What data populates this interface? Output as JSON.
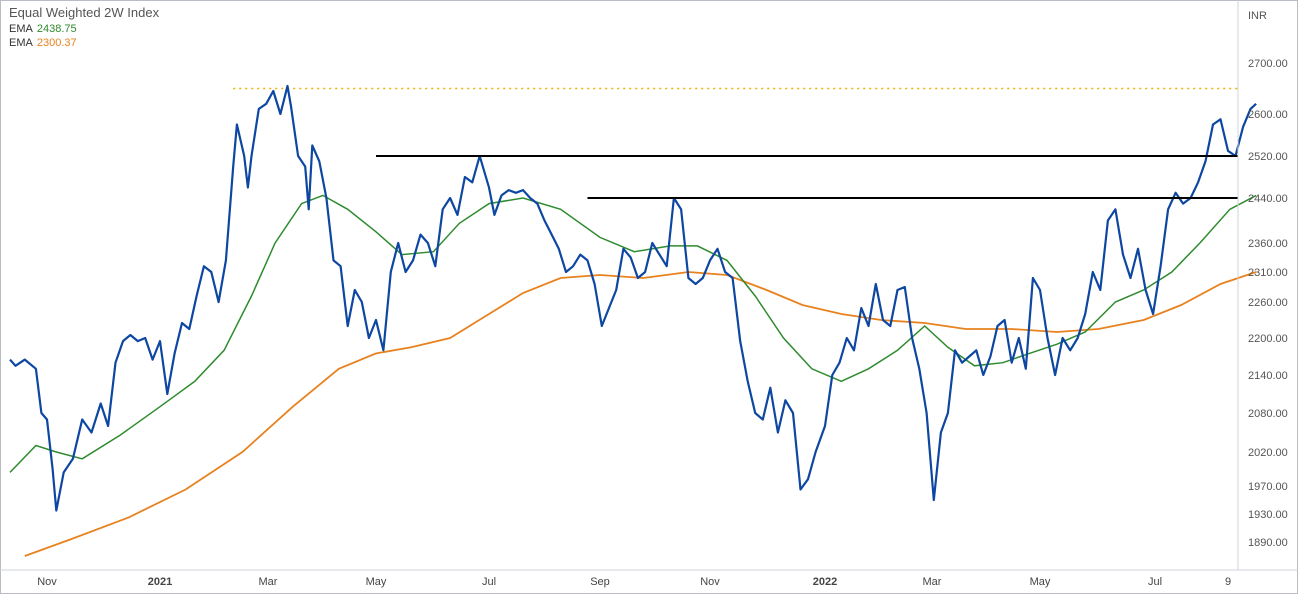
{
  "chart_data": {
    "type": "line",
    "title": "Equal Weighted 2W Index",
    "y_unit": "INR",
    "y_tick_labels": [
      "2700.00",
      "2600.00",
      "2520.00",
      "2440.00",
      "2360.00",
      "2310.00",
      "2260.00",
      "2200.00",
      "2140.00",
      "2080.00",
      "2020.00",
      "1970.00",
      "1930.00",
      "1890.00"
    ],
    "y_tick_values": [
      2700,
      2600,
      2520,
      2440,
      2360,
      2310,
      2260,
      2200,
      2140,
      2080,
      2020,
      1970,
      1930,
      1890
    ],
    "x_tick_labels": [
      "Nov",
      "2021",
      "Mar",
      "May",
      "Jul",
      "Sep",
      "Nov",
      "2022",
      "Mar",
      "May",
      "Jul",
      "9"
    ],
    "x_tick_dates": [
      "2020-11-01",
      "2021-01-01",
      "2021-03-01",
      "2021-05-01",
      "2021-07-01",
      "2021-09-01",
      "2021-11-01",
      "2022-01-01",
      "2022-03-01",
      "2022-05-01",
      "2022-07-01",
      "2022-08-09"
    ],
    "x_bold_labels": [
      "2021",
      "2022"
    ],
    "legend": [
      {
        "label": "EMA",
        "value": "2438.75",
        "color": "#2e8b2e"
      },
      {
        "label": "EMA",
        "value": "2300.37",
        "color": "#e8821e"
      }
    ],
    "grid": false,
    "colors": {
      "price": "#0d47a1",
      "ema_fast": "#2e8b2e",
      "ema_slow": "#e8821e",
      "resistance": "#000000",
      "peak_line": "#f0b000"
    },
    "series": [
      {
        "name": "Equal Weighted 2W Index",
        "points": [
          [
            "2020-10-12",
            2165
          ],
          [
            "2020-10-15",
            2155
          ],
          [
            "2020-10-20",
            2165
          ],
          [
            "2020-10-26",
            2150
          ],
          [
            "2020-10-29",
            2080
          ],
          [
            "2020-11-01",
            2070
          ],
          [
            "2020-11-04",
            1995
          ],
          [
            "2020-11-06",
            1935
          ],
          [
            "2020-11-10",
            1990
          ],
          [
            "2020-11-15",
            2010
          ],
          [
            "2020-11-20",
            2070
          ],
          [
            "2020-11-25",
            2050
          ],
          [
            "2020-11-30",
            2095
          ],
          [
            "2020-12-04",
            2060
          ],
          [
            "2020-12-08",
            2160
          ],
          [
            "2020-12-12",
            2195
          ],
          [
            "2020-12-16",
            2205
          ],
          [
            "2020-12-20",
            2195
          ],
          [
            "2020-12-24",
            2200
          ],
          [
            "2020-12-28",
            2165
          ],
          [
            "2021-01-01",
            2195
          ],
          [
            "2021-01-05",
            2110
          ],
          [
            "2021-01-09",
            2175
          ],
          [
            "2021-01-13",
            2225
          ],
          [
            "2021-01-17",
            2215
          ],
          [
            "2021-01-21",
            2270
          ],
          [
            "2021-01-25",
            2320
          ],
          [
            "2021-01-29",
            2310
          ],
          [
            "2021-02-02",
            2260
          ],
          [
            "2021-02-06",
            2330
          ],
          [
            "2021-02-10",
            2500
          ],
          [
            "2021-02-12",
            2580
          ],
          [
            "2021-02-16",
            2520
          ],
          [
            "2021-02-18",
            2460
          ],
          [
            "2021-02-20",
            2520
          ],
          [
            "2021-02-24",
            2610
          ],
          [
            "2021-02-28",
            2620
          ],
          [
            "2021-03-04",
            2645
          ],
          [
            "2021-03-08",
            2600
          ],
          [
            "2021-03-12",
            2655
          ],
          [
            "2021-03-14",
            2615
          ],
          [
            "2021-03-18",
            2520
          ],
          [
            "2021-03-22",
            2500
          ],
          [
            "2021-03-24",
            2420
          ],
          [
            "2021-03-26",
            2540
          ],
          [
            "2021-03-30",
            2510
          ],
          [
            "2021-04-03",
            2440
          ],
          [
            "2021-04-07",
            2330
          ],
          [
            "2021-04-11",
            2320
          ],
          [
            "2021-04-15",
            2220
          ],
          [
            "2021-04-19",
            2280
          ],
          [
            "2021-04-23",
            2260
          ],
          [
            "2021-04-27",
            2200
          ],
          [
            "2021-05-01",
            2230
          ],
          [
            "2021-05-05",
            2180
          ],
          [
            "2021-05-09",
            2310
          ],
          [
            "2021-05-13",
            2360
          ],
          [
            "2021-05-17",
            2310
          ],
          [
            "2021-05-21",
            2330
          ],
          [
            "2021-05-25",
            2375
          ],
          [
            "2021-05-29",
            2360
          ],
          [
            "2021-06-02",
            2320
          ],
          [
            "2021-06-06",
            2420
          ],
          [
            "2021-06-10",
            2440
          ],
          [
            "2021-06-14",
            2410
          ],
          [
            "2021-06-18",
            2480
          ],
          [
            "2021-06-22",
            2470
          ],
          [
            "2021-06-26",
            2520
          ],
          [
            "2021-07-01",
            2460
          ],
          [
            "2021-07-04",
            2410
          ],
          [
            "2021-07-08",
            2445
          ],
          [
            "2021-07-12",
            2455
          ],
          [
            "2021-07-16",
            2450
          ],
          [
            "2021-07-20",
            2455
          ],
          [
            "2021-07-24",
            2440
          ],
          [
            "2021-07-28",
            2430
          ],
          [
            "2021-08-01",
            2400
          ],
          [
            "2021-08-05",
            2375
          ],
          [
            "2021-08-09",
            2350
          ],
          [
            "2021-08-13",
            2310
          ],
          [
            "2021-08-17",
            2320
          ],
          [
            "2021-08-21",
            2340
          ],
          [
            "2021-08-25",
            2330
          ],
          [
            "2021-08-29",
            2290
          ],
          [
            "2021-09-02",
            2220
          ],
          [
            "2021-09-06",
            2250
          ],
          [
            "2021-09-10",
            2280
          ],
          [
            "2021-09-14",
            2350
          ],
          [
            "2021-09-18",
            2335
          ],
          [
            "2021-09-22",
            2300
          ],
          [
            "2021-09-26",
            2310
          ],
          [
            "2021-09-30",
            2360
          ],
          [
            "2021-10-04",
            2340
          ],
          [
            "2021-10-08",
            2320
          ],
          [
            "2021-10-12",
            2440
          ],
          [
            "2021-10-16",
            2420
          ],
          [
            "2021-10-20",
            2300
          ],
          [
            "2021-10-24",
            2290
          ],
          [
            "2021-10-28",
            2300
          ],
          [
            "2021-11-01",
            2330
          ],
          [
            "2021-11-05",
            2350
          ],
          [
            "2021-11-09",
            2310
          ],
          [
            "2021-11-13",
            2300
          ],
          [
            "2021-11-17",
            2195
          ],
          [
            "2021-11-21",
            2130
          ],
          [
            "2021-11-25",
            2080
          ],
          [
            "2021-11-29",
            2070
          ],
          [
            "2021-12-03",
            2120
          ],
          [
            "2021-12-07",
            2050
          ],
          [
            "2021-12-11",
            2100
          ],
          [
            "2021-12-15",
            2080
          ],
          [
            "2021-12-19",
            1965
          ],
          [
            "2021-12-23",
            1980
          ],
          [
            "2021-12-27",
            2020
          ],
          [
            "2022-01-01",
            2060
          ],
          [
            "2022-01-05",
            2140
          ],
          [
            "2022-01-09",
            2160
          ],
          [
            "2022-01-13",
            2200
          ],
          [
            "2022-01-17",
            2180
          ],
          [
            "2022-01-21",
            2250
          ],
          [
            "2022-01-25",
            2220
          ],
          [
            "2022-01-29",
            2290
          ],
          [
            "2022-02-02",
            2230
          ],
          [
            "2022-02-06",
            2220
          ],
          [
            "2022-02-10",
            2280
          ],
          [
            "2022-02-14",
            2285
          ],
          [
            "2022-02-18",
            2200
          ],
          [
            "2022-02-22",
            2150
          ],
          [
            "2022-02-26",
            2080
          ],
          [
            "2022-03-02",
            1950
          ],
          [
            "2022-03-06",
            2050
          ],
          [
            "2022-03-10",
            2080
          ],
          [
            "2022-03-14",
            2180
          ],
          [
            "2022-03-18",
            2160
          ],
          [
            "2022-03-22",
            2170
          ],
          [
            "2022-03-26",
            2180
          ],
          [
            "2022-03-30",
            2140
          ],
          [
            "2022-04-03",
            2170
          ],
          [
            "2022-04-07",
            2220
          ],
          [
            "2022-04-11",
            2230
          ],
          [
            "2022-04-15",
            2160
          ],
          [
            "2022-04-19",
            2200
          ],
          [
            "2022-04-23",
            2150
          ],
          [
            "2022-04-27",
            2300
          ],
          [
            "2022-05-01",
            2280
          ],
          [
            "2022-05-05",
            2200
          ],
          [
            "2022-05-09",
            2140
          ],
          [
            "2022-05-13",
            2200
          ],
          [
            "2022-05-17",
            2180
          ],
          [
            "2022-05-21",
            2200
          ],
          [
            "2022-05-25",
            2240
          ],
          [
            "2022-05-29",
            2310
          ],
          [
            "2022-06-02",
            2280
          ],
          [
            "2022-06-06",
            2400
          ],
          [
            "2022-06-10",
            2420
          ],
          [
            "2022-06-14",
            2340
          ],
          [
            "2022-06-18",
            2300
          ],
          [
            "2022-06-22",
            2350
          ],
          [
            "2022-06-26",
            2280
          ],
          [
            "2022-06-30",
            2240
          ],
          [
            "2022-07-04",
            2320
          ],
          [
            "2022-07-08",
            2420
          ],
          [
            "2022-07-12",
            2450
          ],
          [
            "2022-07-16",
            2430
          ],
          [
            "2022-07-20",
            2440
          ],
          [
            "2022-07-24",
            2470
          ],
          [
            "2022-07-28",
            2510
          ],
          [
            "2022-08-01",
            2580
          ],
          [
            "2022-08-05",
            2590
          ],
          [
            "2022-08-09",
            2530
          ],
          [
            "2022-08-13",
            2520
          ],
          [
            "2022-08-17",
            2575
          ],
          [
            "2022-08-21",
            2610
          ],
          [
            "2022-08-24",
            2620
          ]
        ]
      },
      {
        "name": "EMA",
        "points": [
          [
            "2020-10-12",
            1990
          ],
          [
            "2020-10-26",
            2030
          ],
          [
            "2020-11-06",
            2020
          ],
          [
            "2020-11-20",
            2010
          ],
          [
            "2020-12-10",
            2045
          ],
          [
            "2021-01-01",
            2090
          ],
          [
            "2021-01-20",
            2130
          ],
          [
            "2021-02-05",
            2180
          ],
          [
            "2021-02-20",
            2270
          ],
          [
            "2021-03-05",
            2360
          ],
          [
            "2021-03-20",
            2430
          ],
          [
            "2021-04-01",
            2445
          ],
          [
            "2021-04-15",
            2420
          ],
          [
            "2021-05-01",
            2380
          ],
          [
            "2021-05-15",
            2340
          ],
          [
            "2021-06-01",
            2345
          ],
          [
            "2021-06-15",
            2395
          ],
          [
            "2021-07-01",
            2430
          ],
          [
            "2021-07-20",
            2440
          ],
          [
            "2021-08-10",
            2420
          ],
          [
            "2021-09-01",
            2370
          ],
          [
            "2021-09-20",
            2345
          ],
          [
            "2021-10-10",
            2355
          ],
          [
            "2021-10-25",
            2355
          ],
          [
            "2021-11-10",
            2330
          ],
          [
            "2021-11-25",
            2270
          ],
          [
            "2021-12-10",
            2200
          ],
          [
            "2021-12-25",
            2150
          ],
          [
            "2022-01-10",
            2130
          ],
          [
            "2022-01-25",
            2150
          ],
          [
            "2022-02-10",
            2180
          ],
          [
            "2022-02-25",
            2220
          ],
          [
            "2022-03-10",
            2185
          ],
          [
            "2022-03-25",
            2155
          ],
          [
            "2022-04-10",
            2160
          ],
          [
            "2022-04-25",
            2175
          ],
          [
            "2022-05-10",
            2190
          ],
          [
            "2022-05-25",
            2210
          ],
          [
            "2022-06-10",
            2260
          ],
          [
            "2022-06-25",
            2280
          ],
          [
            "2022-07-10",
            2310
          ],
          [
            "2022-07-25",
            2360
          ],
          [
            "2022-08-10",
            2420
          ],
          [
            "2022-08-24",
            2445
          ]
        ]
      },
      {
        "name": "EMA",
        "points": [
          [
            "2020-10-20",
            1870
          ],
          [
            "2020-11-15",
            1895
          ],
          [
            "2020-12-15",
            1925
          ],
          [
            "2021-01-15",
            1965
          ],
          [
            "2021-02-15",
            2020
          ],
          [
            "2021-03-15",
            2090
          ],
          [
            "2021-04-10",
            2150
          ],
          [
            "2021-05-01",
            2175
          ],
          [
            "2021-05-20",
            2185
          ],
          [
            "2021-06-10",
            2200
          ],
          [
            "2021-07-01",
            2240
          ],
          [
            "2021-07-20",
            2275
          ],
          [
            "2021-08-10",
            2300
          ],
          [
            "2021-09-01",
            2305
          ],
          [
            "2021-09-25",
            2300
          ],
          [
            "2021-10-20",
            2310
          ],
          [
            "2021-11-10",
            2305
          ],
          [
            "2021-12-01",
            2280
          ],
          [
            "2021-12-20",
            2255
          ],
          [
            "2022-01-10",
            2240
          ],
          [
            "2022-02-01",
            2230
          ],
          [
            "2022-02-25",
            2225
          ],
          [
            "2022-03-20",
            2215
          ],
          [
            "2022-04-15",
            2215
          ],
          [
            "2022-05-10",
            2210
          ],
          [
            "2022-06-01",
            2215
          ],
          [
            "2022-06-25",
            2230
          ],
          [
            "2022-07-15",
            2255
          ],
          [
            "2022-08-05",
            2290
          ],
          [
            "2022-08-24",
            2310
          ]
        ]
      }
    ],
    "resistance_lines": [
      {
        "value": 2520,
        "start": "2021-05-01",
        "end": "2022-08-31"
      },
      {
        "value": 2440,
        "start": "2021-08-25",
        "end": "2022-08-31"
      }
    ],
    "peak_line": {
      "value": 2650,
      "start": "2021-02-10",
      "end": "2022-08-31"
    }
  }
}
